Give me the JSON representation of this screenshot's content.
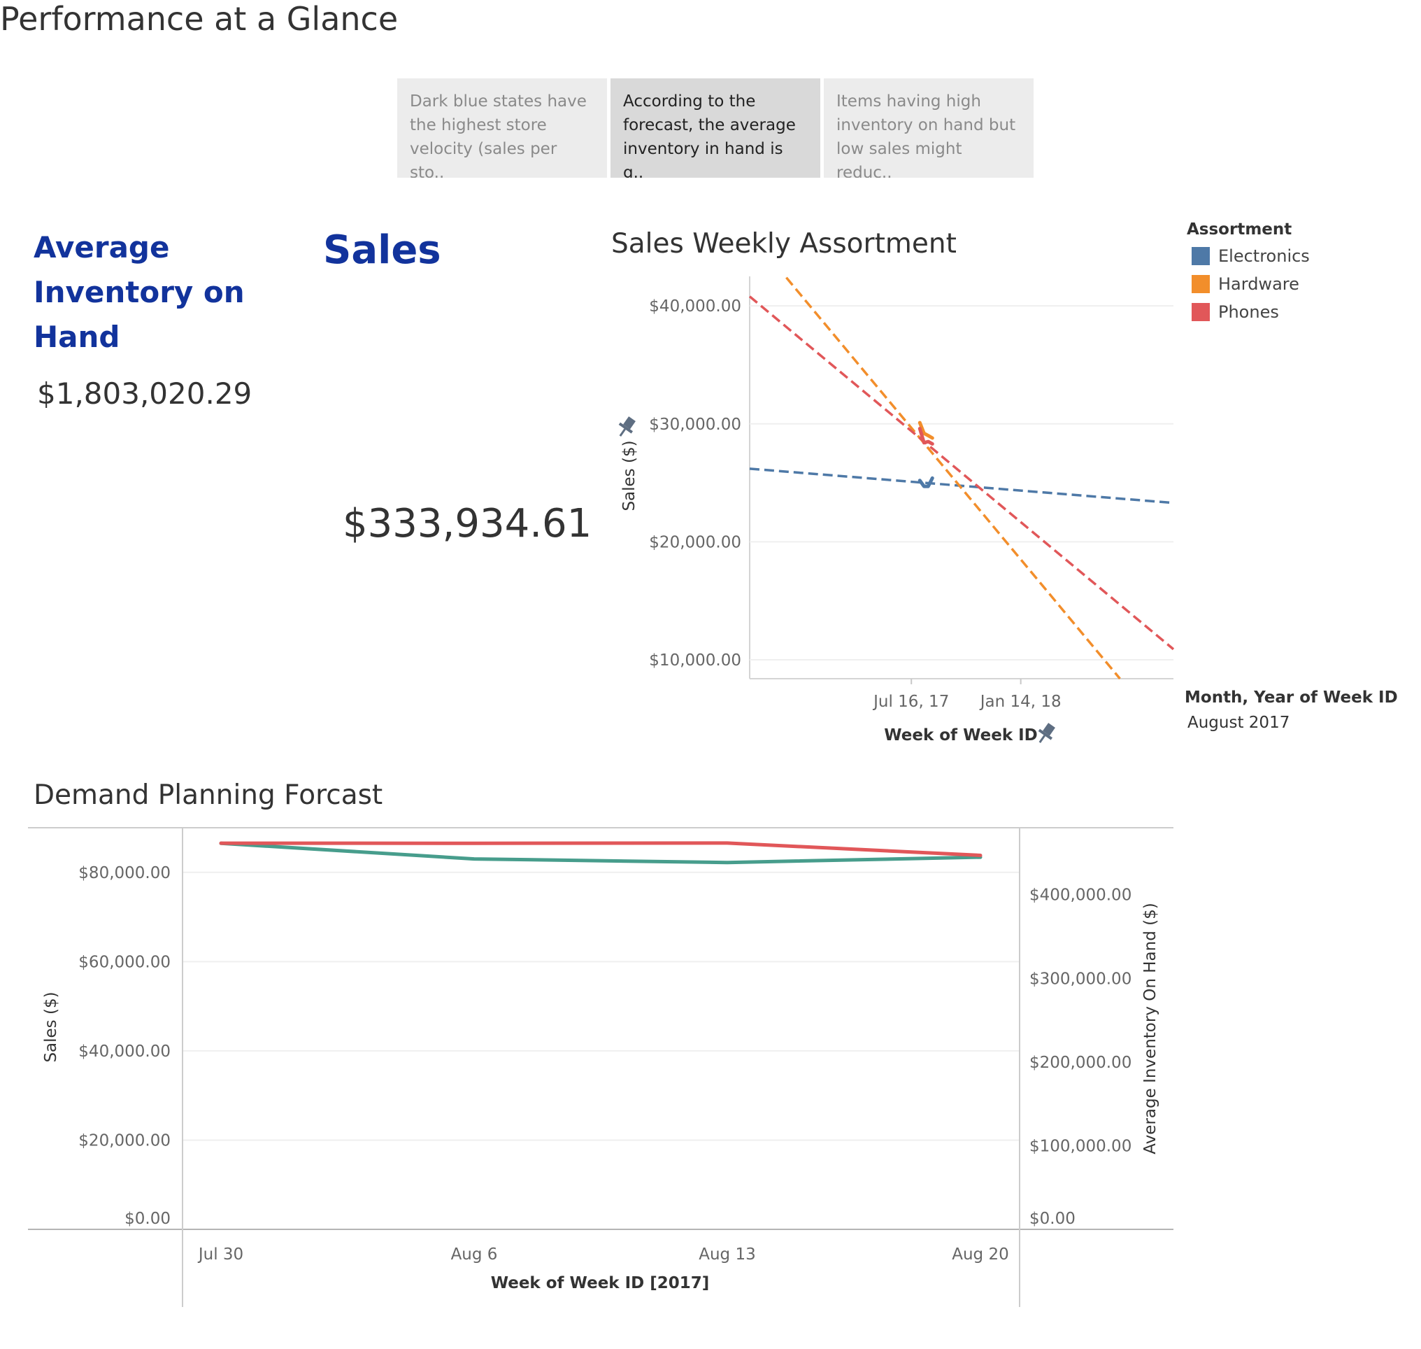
{
  "page": {
    "title": "Performance at a Glance"
  },
  "story_points": [
    {
      "text": "Dark blue states have the highest store velocity (sales per sto..",
      "active": false
    },
    {
      "text": "According to the forecast, the average inventory in hand is g..",
      "active": true
    },
    {
      "text": "Items having high inventory on hand but low sales might reduc..",
      "active": false
    }
  ],
  "kpis": {
    "inventory": {
      "title": "Average Inventory on Hand",
      "value": "$1,803,020.29"
    },
    "sales": {
      "title": "Sales",
      "value": "$333,934.61"
    }
  },
  "weekly_chart": {
    "title": "Sales Weekly Assortment",
    "xlabel": "Week of Week ID",
    "ylabel": "Sales ($)",
    "pin_icon": "pin-icon"
  },
  "legend": {
    "title": "Assortment",
    "items": [
      {
        "label": "Electronics",
        "color": "#4e79a7"
      },
      {
        "label": "Hardware",
        "color": "#f28e2b"
      },
      {
        "label": "Phones",
        "color": "#e15759"
      }
    ]
  },
  "filter": {
    "title": "Month, Year of Week ID",
    "value": "August 2017"
  },
  "forecast_chart": {
    "title": "Demand Planning Forcast",
    "xlabel": "Week of Week ID [2017]",
    "ylabel_left": "Sales ($)",
    "ylabel_right": "Average Inventory On Hand ($)"
  },
  "chart_data": [
    {
      "type": "line",
      "title": "Sales Weekly Assortment",
      "xlabel": "Week of Week ID",
      "ylabel": "Sales ($)",
      "x_ticks": [
        "Jul 16, 17",
        "Jan 14, 18"
      ],
      "y_ticks": [
        "$10,000.00",
        "$20,000.00",
        "$30,000.00",
        "$40,000.00"
      ],
      "ylim": [
        8400,
        42500
      ],
      "legend_position": "right",
      "grid": true,
      "series": [
        {
          "name": "Electronics",
          "color": "#4e79a7",
          "actual": [
            [
              "2017-07-30",
              25200
            ],
            [
              "2017-08-06",
              24700
            ],
            [
              "2017-08-13",
              24700
            ],
            [
              "2017-08-20",
              25400
            ]
          ],
          "trend": [
            [
              "2016-10-20",
              26200
            ],
            [
              "2018-09-25",
              23300
            ]
          ]
        },
        {
          "name": "Hardware",
          "color": "#f28e2b",
          "actual": [
            [
              "2017-07-30",
              30100
            ],
            [
              "2017-08-06",
              29200
            ],
            [
              "2017-08-13",
              29000
            ],
            [
              "2017-08-20",
              28800
            ]
          ],
          "trend": [
            [
              "2016-12-20",
              42400
            ],
            [
              "2018-06-28",
              8400
            ]
          ]
        },
        {
          "name": "Phones",
          "color": "#e15759",
          "actual": [
            [
              "2017-07-30",
              29600
            ],
            [
              "2017-08-06",
              28400
            ],
            [
              "2017-08-13",
              28500
            ],
            [
              "2017-08-20",
              28300
            ]
          ],
          "trend": [
            [
              "2016-10-20",
              40800
            ],
            [
              "2018-09-25",
              10900
            ]
          ]
        }
      ]
    },
    {
      "type": "line",
      "title": "Demand Planning Forcast",
      "xlabel": "Week of Week ID [2017]",
      "ylabel": "Sales ($)",
      "ylabel_right": "Average Inventory On Hand ($)",
      "categories": [
        "Jul 30",
        "Aug 6",
        "Aug 13",
        "Aug 20"
      ],
      "y_ticks": [
        "$0.00",
        "$20,000.00",
        "$40,000.00",
        "$60,000.00",
        "$80,000.00"
      ],
      "y2_ticks": [
        "$0.00",
        "$100,000.00",
        "$200,000.00",
        "$300,000.00",
        "$400,000.00"
      ],
      "ylim": [
        0,
        90000
      ],
      "y2lim": [
        0,
        480000
      ],
      "grid": true,
      "series": [
        {
          "name": "Sales",
          "axis": "left",
          "color": "#479d8c",
          "values": [
            86500,
            83000,
            82200,
            83400
          ]
        },
        {
          "name": "Average Inventory On Hand",
          "axis": "right",
          "color": "#e15759",
          "values": [
            461500,
            461400,
            461700,
            447000
          ]
        }
      ]
    }
  ]
}
